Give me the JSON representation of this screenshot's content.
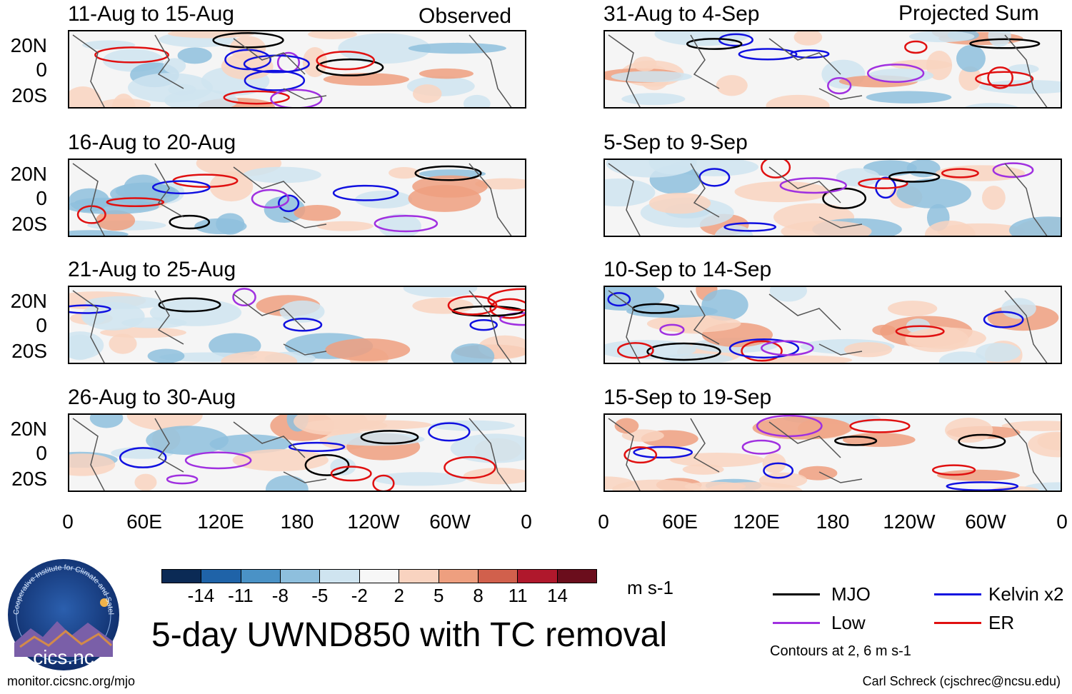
{
  "header": {
    "left_corner": "Observed",
    "right_corner": "Projected Sum"
  },
  "panels_left": [
    {
      "title": "11-Aug to 15-Aug"
    },
    {
      "title": "16-Aug to 20-Aug"
    },
    {
      "title": "21-Aug to 25-Aug"
    },
    {
      "title": "26-Aug to 30-Aug"
    }
  ],
  "panels_right": [
    {
      "title": "31-Aug to 4-Sep"
    },
    {
      "title": "5-Sep to 9-Sep"
    },
    {
      "title": "10-Sep to 14-Sep"
    },
    {
      "title": "15-Sep to 19-Sep"
    }
  ],
  "lat_labels": [
    "20N",
    "0",
    "20S"
  ],
  "lon_labels": [
    "0",
    "60E",
    "120E",
    "180",
    "120W",
    "60W",
    "0"
  ],
  "colorbar": {
    "labels": [
      "-14",
      "-11",
      "-8",
      "-5",
      "-2",
      "2",
      "5",
      "8",
      "11",
      "14"
    ],
    "colors": [
      "#0b2a55",
      "#1f63a8",
      "#4a92c6",
      "#8ebfdd",
      "#cfe4f0",
      "#f7f7f7",
      "#f9d3c0",
      "#ee9f7f",
      "#d1604c",
      "#b0182c",
      "#6b0d1c"
    ],
    "units": "m s-1"
  },
  "title": "5-day UWND850 with TC removal",
  "legend": {
    "items": [
      {
        "label": "MJO",
        "color": "#000000"
      },
      {
        "label": "Kelvin x2",
        "color": "#1010e0"
      },
      {
        "label": "Low",
        "color": "#a030e0"
      },
      {
        "label": "ER",
        "color": "#e01010"
      }
    ],
    "note": "Contours at 2, 6 m s-1"
  },
  "logo": {
    "text": "cics.nc",
    "ring_text": "Cooperative Institute for Climate and Satellites"
  },
  "footer": {
    "left": "monitor.cicsnc.org/mjo",
    "right": "Carl Schreck (cjschrec@ncsu.edu)"
  }
}
